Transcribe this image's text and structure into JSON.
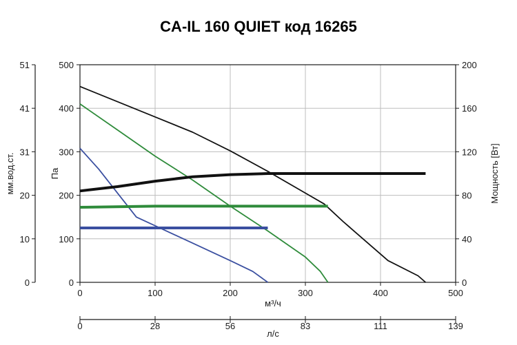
{
  "chart_data": {
    "type": "line",
    "title": "CA-IL 160 QUIET код 16265",
    "x_axis": {
      "label": "м³/ч",
      "range": [
        0,
        500
      ],
      "ticks": [
        "0",
        "100",
        "200",
        "300",
        "400",
        "500"
      ]
    },
    "x2_axis": {
      "label": "л/с",
      "range": [
        0,
        139
      ],
      "ticks": [
        "0",
        "28",
        "56",
        "83",
        "111",
        "139"
      ]
    },
    "y_axis": {
      "label": "Па",
      "range": [
        0,
        500
      ],
      "ticks": [
        "0",
        "100",
        "200",
        "300",
        "400",
        "500"
      ]
    },
    "y_left_outer_axis": {
      "label": "мм.вод.ст.",
      "ticks": [
        "0",
        "10",
        "20",
        "31",
        "41",
        "51"
      ]
    },
    "y_right_axis": {
      "label": "Мощность [Вт]",
      "range": [
        0,
        200
      ],
      "ticks": [
        "0",
        "40",
        "80",
        "120",
        "160",
        "200"
      ]
    },
    "grid": true,
    "series": [
      {
        "axis": "pressure",
        "color": "#111111",
        "points": [
          [
            0,
            450
          ],
          [
            50,
            415
          ],
          [
            100,
            380
          ],
          [
            150,
            345
          ],
          [
            200,
            302
          ],
          [
            250,
            255
          ],
          [
            300,
            205
          ],
          [
            325,
            180
          ],
          [
            350,
            140
          ],
          [
            400,
            65
          ],
          [
            410,
            50
          ],
          [
            450,
            15
          ],
          [
            460,
            0
          ]
        ]
      },
      {
        "axis": "pressure",
        "color": "#2e8b3a",
        "points": [
          [
            0,
            410
          ],
          [
            50,
            350
          ],
          [
            100,
            290
          ],
          [
            150,
            235
          ],
          [
            200,
            175
          ],
          [
            250,
            118
          ],
          [
            300,
            58
          ],
          [
            320,
            25
          ],
          [
            330,
            0
          ]
        ]
      },
      {
        "axis": "pressure",
        "color": "#3a4fa0",
        "points": [
          [
            0,
            308
          ],
          [
            25,
            260
          ],
          [
            50,
            205
          ],
          [
            75,
            150
          ],
          [
            100,
            130
          ],
          [
            150,
            90
          ],
          [
            200,
            50
          ],
          [
            230,
            25
          ],
          [
            250,
            0
          ]
        ]
      },
      {
        "axis": "power",
        "color": "#111111",
        "width": 4,
        "points": [
          [
            0,
            84
          ],
          [
            50,
            88
          ],
          [
            100,
            93
          ],
          [
            150,
            97
          ],
          [
            200,
            99
          ],
          [
            250,
            100
          ],
          [
            300,
            100
          ],
          [
            350,
            100
          ],
          [
            400,
            100
          ],
          [
            460,
            100
          ]
        ]
      },
      {
        "axis": "power",
        "color": "#2e8b3a",
        "width": 4,
        "points": [
          [
            0,
            69
          ],
          [
            100,
            70
          ],
          [
            200,
            70
          ],
          [
            330,
            70
          ]
        ]
      },
      {
        "axis": "power",
        "color": "#3a4fa0",
        "width": 4,
        "points": [
          [
            0,
            50
          ],
          [
            250,
            50
          ]
        ]
      }
    ]
  }
}
